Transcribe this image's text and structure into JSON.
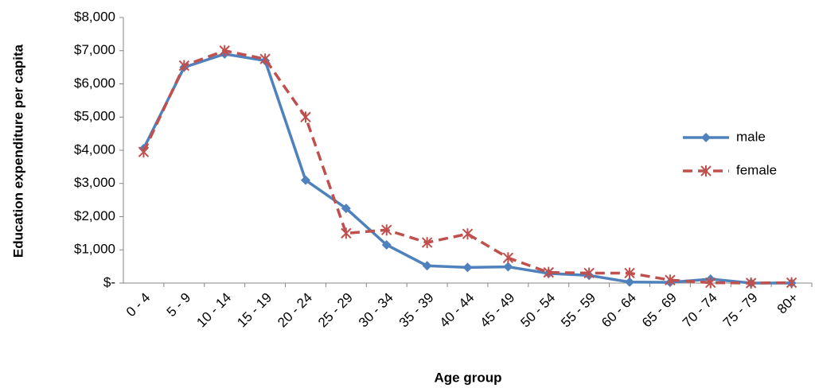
{
  "chart_data": {
    "type": "line",
    "y_label": "Education expenditure per capita",
    "x_label": "Age group",
    "categories": [
      "0 - 4",
      "5 - 9",
      "10 - 14",
      "15 - 19",
      "20 - 24",
      "25 - 29",
      "30 - 34",
      "35 - 39",
      "40 - 44",
      "45 - 49",
      "50 - 54",
      "55 - 59",
      "60 - 64",
      "65 - 69",
      "70 - 74",
      "75 - 79",
      "80+"
    ],
    "series": [
      {
        "name": "male",
        "color": "#4f81bd",
        "style": "solid",
        "marker": "diamond",
        "values": [
          4050,
          6500,
          6900,
          6700,
          3100,
          2250,
          1150,
          520,
          470,
          490,
          290,
          230,
          30,
          20,
          120,
          0,
          0
        ]
      },
      {
        "name": "female",
        "color": "#c0504d",
        "style": "dashed",
        "marker": "asterisk",
        "values": [
          3950,
          6550,
          7000,
          6750,
          5000,
          1500,
          1600,
          1220,
          1480,
          760,
          320,
          300,
          300,
          90,
          10,
          0,
          10
        ]
      }
    ],
    "ylim": [
      0,
      8000
    ],
    "yticks": [
      {
        "value": 0,
        "label": "$-"
      },
      {
        "value": 1000,
        "label": "$1,000"
      },
      {
        "value": 2000,
        "label": "$2,000"
      },
      {
        "value": 3000,
        "label": "$3,000"
      },
      {
        "value": 4000,
        "label": "$4,000"
      },
      {
        "value": 5000,
        "label": "$5,000"
      },
      {
        "value": 6000,
        "label": "$6,000"
      },
      {
        "value": 7000,
        "label": "$7,000"
      },
      {
        "value": 8000,
        "label": "$8,000"
      }
    ],
    "grid": false,
    "legend": "right"
  }
}
